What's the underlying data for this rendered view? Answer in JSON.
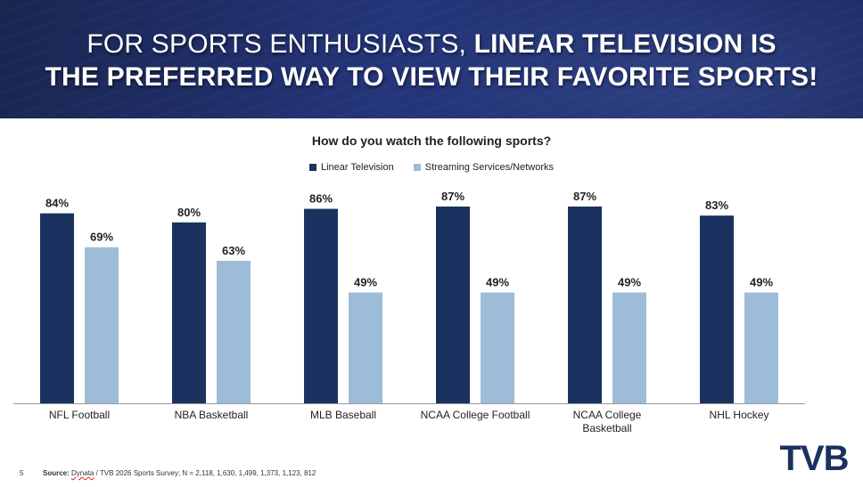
{
  "headline": {
    "light": "FOR SPORTS ENTHUSIASTS, ",
    "bold_1": "LINEAR TELEVISION IS",
    "bold_2": "THE PREFERRED WAY TO VIEW THEIR FAVORITE SPORTS!"
  },
  "colors": {
    "linear": "#1b3260",
    "streaming": "#9cbcd8",
    "axis": "#9a9a9a"
  },
  "chart_data": {
    "type": "bar",
    "title": "How do you watch the following sports?",
    "categories": [
      "NFL Football",
      "NBA Basketball",
      "MLB Baseball",
      "NCAA College Football",
      "NCAA College Basketball",
      "NHL Hockey"
    ],
    "category_lines": [
      [
        "NFL Football"
      ],
      [
        "NBA Basketball"
      ],
      [
        "MLB Baseball"
      ],
      [
        "NCAA College Football"
      ],
      [
        "NCAA College",
        "Basketball"
      ],
      [
        "NHL Hockey"
      ]
    ],
    "series": [
      {
        "name": "Linear Television",
        "values": [
          84,
          80,
          86,
          87,
          87,
          83
        ],
        "labels": [
          "84%",
          "80%",
          "86%",
          "87%",
          "87%",
          "83%"
        ]
      },
      {
        "name": "Streaming Services/Networks",
        "values": [
          69,
          63,
          49,
          49,
          49,
          49
        ],
        "labels": [
          "69%",
          "63%",
          "49%",
          "49%",
          "49%",
          "49%"
        ]
      }
    ],
    "xlabel": "",
    "ylabel": "",
    "ylim": [
      0,
      100
    ],
    "legend_position": "top-center",
    "grid": false
  },
  "footer": {
    "page_number": "5",
    "source_label": "Source:",
    "source_company": "Dynata",
    "source_text": " / TVB 2026 Sports Survey; N = 2,118, 1,630, 1,499, 1,373, 1,123, 812"
  },
  "logo": {
    "text": "TVB"
  }
}
